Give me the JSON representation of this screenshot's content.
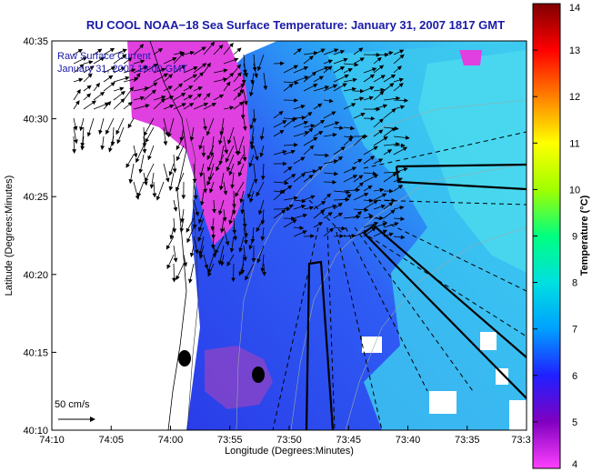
{
  "chart_data": {
    "type": "heatmap",
    "title": "RU COOL  NOAA−18  Sea Surface Temperature:  January 31, 2007 1817 GMT",
    "xlabel": "Longitude (Degrees:Minutes)",
    "ylabel": "Latitude (Degrees:Minutes)",
    "x_ticks": [
      "74:10",
      "74:05",
      "74:00",
      "73:55",
      "73:50",
      "73:45",
      "73:40",
      "73:35",
      "73:3"
    ],
    "y_ticks": [
      "40:35",
      "40:30",
      "40:25",
      "40:20",
      "40:15",
      "40:10"
    ],
    "xlim": [
      "74:10",
      "73:30"
    ],
    "ylim": [
      "40:10",
      "40:35"
    ],
    "legend": {
      "title": "Raw Surface Current",
      "subtitle": "January 31, 2007 19:00 GMT",
      "placement": "top-left"
    },
    "scale_label": "50 cm/s",
    "colorbar": {
      "label": "Temperature (°C)",
      "ticks": [
        "4",
        "5",
        "6",
        "7",
        "8",
        "9",
        "10",
        "11",
        "12",
        "13",
        "14"
      ],
      "min": 4,
      "max": 14,
      "colormap": [
        "#ff40ff",
        "#8000c0",
        "#2020ff",
        "#00a0ff",
        "#00e0e0",
        "#00ff80",
        "#a0ff00",
        "#ffff00",
        "#ff8000",
        "#ff0000",
        "#800000"
      ]
    },
    "grid": false,
    "colors": {
      "title": "#1a1aa8",
      "land": "#ffffff",
      "water_main": "#2a4cf0",
      "water_offshore": "#3cd6f0",
      "water_cold": "#ff40e0"
    }
  }
}
